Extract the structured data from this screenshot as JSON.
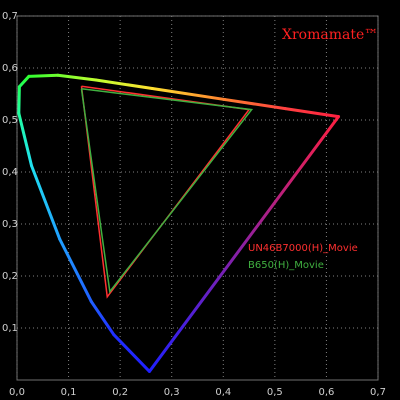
{
  "chart_data": {
    "type": "line",
    "title": "Xromamate™",
    "title_color": "#ff2020",
    "xlim": [
      0,
      0.7
    ],
    "ylim": [
      0,
      0.7
    ],
    "xticks": [
      {
        "value": 0,
        "label": "0,0"
      },
      {
        "value": 0.1,
        "label": "0,1"
      },
      {
        "value": 0.2,
        "label": "0,2"
      },
      {
        "value": 0.3,
        "label": "0,3"
      },
      {
        "value": 0.4,
        "label": "0,4"
      },
      {
        "value": 0.5,
        "label": "0,5"
      },
      {
        "value": 0.6,
        "label": "0,6"
      },
      {
        "value": 0.7,
        "label": "0,7"
      }
    ],
    "yticks": [
      {
        "value": 0.1,
        "label": "0,1"
      },
      {
        "value": 0.2,
        "label": "0,2"
      },
      {
        "value": 0.3,
        "label": "0,3"
      },
      {
        "value": 0.4,
        "label": "0,4"
      },
      {
        "value": 0.5,
        "label": "0,5"
      },
      {
        "value": 0.6,
        "label": "0,6"
      },
      {
        "value": 0.7,
        "label": "0,7"
      }
    ],
    "grid": true,
    "series": [
      {
        "x": [
          0.2568,
          0.1877,
          0.144,
          0.0828,
          0.0282,
          0.0035,
          0.0046,
          0.0231,
          0.0792,
          0.1531,
          0.2623,
          0.4035,
          0.5203,
          0.6234,
          0.2568
        ],
        "values": [
          0.0165,
          0.0871,
          0.151,
          0.271,
          0.412,
          0.513,
          0.564,
          0.584,
          0.586,
          0.577,
          0.5605,
          0.5393,
          0.5219,
          0.5065,
          0.0165
        ],
        "colors": [
          "#2020ff",
          "#2030ff",
          "#2060ff",
          "#20a0ff",
          "#20e0f0",
          "#20ffa0",
          "#20ff60",
          "#30ff30",
          "#70ff30",
          "#c0ff30",
          "#ffe030",
          "#ff8030",
          "#ff4040",
          "#ff2040",
          "#2020ff"
        ]
      },
      {
        "name": "UN46B7000(H)_Movie",
        "color": "#ff3030",
        "x": [
          0.125,
          0.45,
          0.175,
          0.125
        ],
        "values": [
          0.565,
          0.52,
          0.16,
          0.565
        ]
      },
      {
        "name": "B650(H)_Movie",
        "color": "#40b040",
        "x": [
          0.125,
          0.455,
          0.18,
          0.125
        ],
        "values": [
          0.56,
          0.52,
          0.17,
          0.56
        ]
      }
    ]
  }
}
